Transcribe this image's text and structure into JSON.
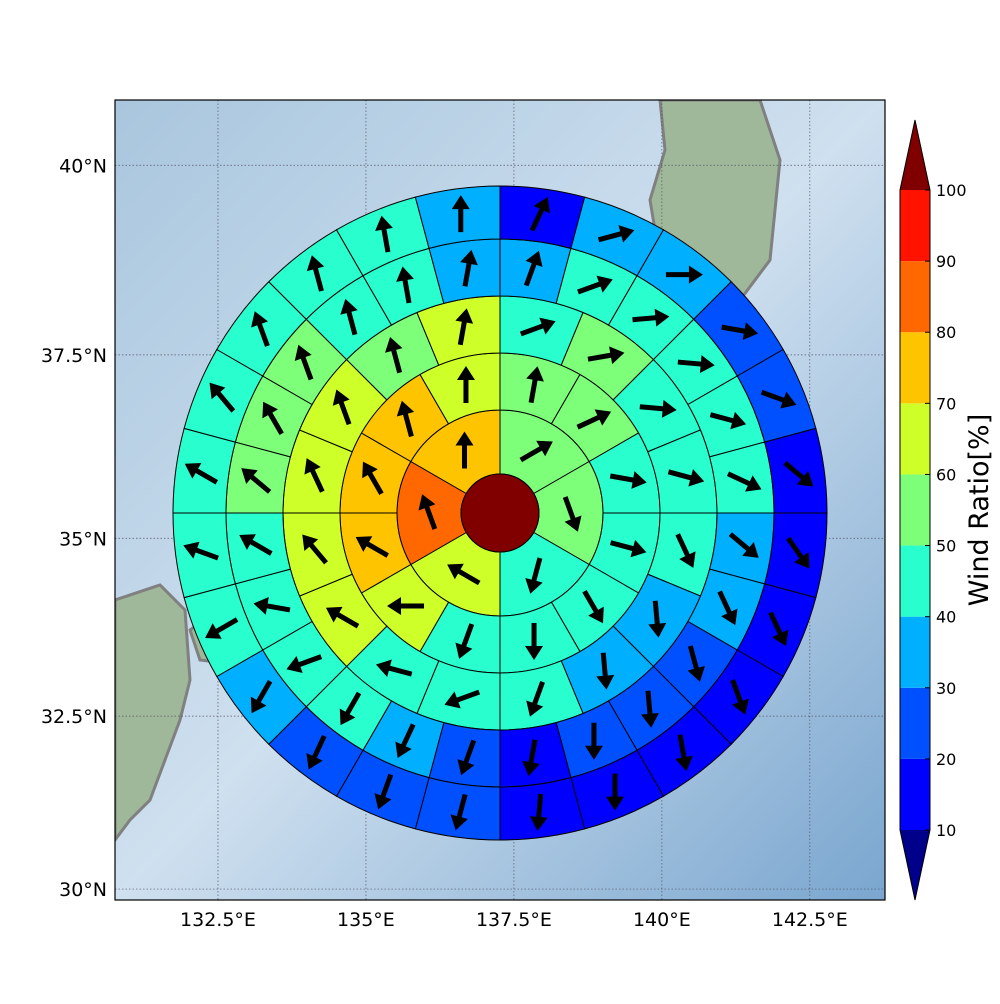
{
  "chart_data": {
    "type": "polar-sector-map",
    "xlim": [
      130.76,
      143.77
    ],
    "ylim": [
      29.84,
      40.84
    ],
    "xticks": [
      {
        "value": 132.5,
        "label": "132.5°E"
      },
      {
        "value": 135,
        "label": "135°E"
      },
      {
        "value": 137.5,
        "label": "137.5°E"
      },
      {
        "value": 140,
        "label": "140°E"
      },
      {
        "value": 142.5,
        "label": "142.5°E"
      }
    ],
    "yticks": [
      {
        "value": 30,
        "label": "30°N"
      },
      {
        "value": 32.5,
        "label": "32.5°N"
      },
      {
        "value": 35,
        "label": "35°N"
      },
      {
        "value": 37.5,
        "label": "37.5°N"
      },
      {
        "value": 40,
        "label": "40°N"
      }
    ],
    "grid": true,
    "colorbar": {
      "label": "Wind Ratio[%]",
      "ticks": [
        10,
        20,
        30,
        40,
        50,
        60,
        70,
        80,
        90,
        100
      ],
      "colors": [
        "#0000ff",
        "#0050ff",
        "#00b0ff",
        "#29ffce",
        "#7dff7a",
        "#ceff29",
        "#ffc400",
        "#ff6800",
        "#ff1300"
      ],
      "under_color": "#00008b",
      "over_color": "#800000"
    },
    "rings": [
      {
        "values": [
          55,
          55,
          45,
          65,
          85,
          75
        ],
        "directions": [
          60,
          160,
          195,
          300,
          340,
          0
        ]
      },
      {
        "values": [
          55,
          55,
          45,
          45,
          45,
          45,
          45,
          65,
          75,
          75,
          75,
          65
        ],
        "directions": [
          10,
          65,
          100,
          105,
          150,
          180,
          200,
          270,
          300,
          330,
          345,
          0
        ]
      },
      {
        "values": [
          45,
          55,
          45,
          45,
          45,
          35,
          35,
          45,
          45,
          45,
          65,
          65,
          65,
          65,
          55,
          65
        ],
        "directions": [
          70,
          80,
          95,
          105,
          155,
          175,
          175,
          200,
          250,
          285,
          300,
          320,
          335,
          340,
          345,
          10
        ]
      },
      {
        "values": [
          35,
          45,
          45,
          45,
          45,
          45,
          35,
          35,
          25,
          25,
          25,
          15,
          25,
          35,
          45,
          45,
          45,
          45,
          55,
          55,
          55,
          45,
          45,
          35
        ],
        "directions": [
          20,
          70,
          85,
          95,
          105,
          115,
          130,
          155,
          165,
          175,
          180,
          190,
          200,
          205,
          210,
          250,
          280,
          300,
          310,
          330,
          340,
          345,
          350,
          10
        ]
      },
      {
        "values": [
          15,
          35,
          35,
          25,
          25,
          15,
          15,
          15,
          15,
          15,
          15,
          15,
          25,
          25,
          25,
          35,
          45,
          45,
          45,
          45,
          45,
          45,
          45,
          35
        ],
        "directions": [
          25,
          75,
          90,
          100,
          110,
          130,
          145,
          155,
          160,
          170,
          180,
          185,
          195,
          200,
          205,
          210,
          240,
          290,
          300,
          320,
          340,
          345,
          350,
          0
        ]
      }
    ]
  }
}
